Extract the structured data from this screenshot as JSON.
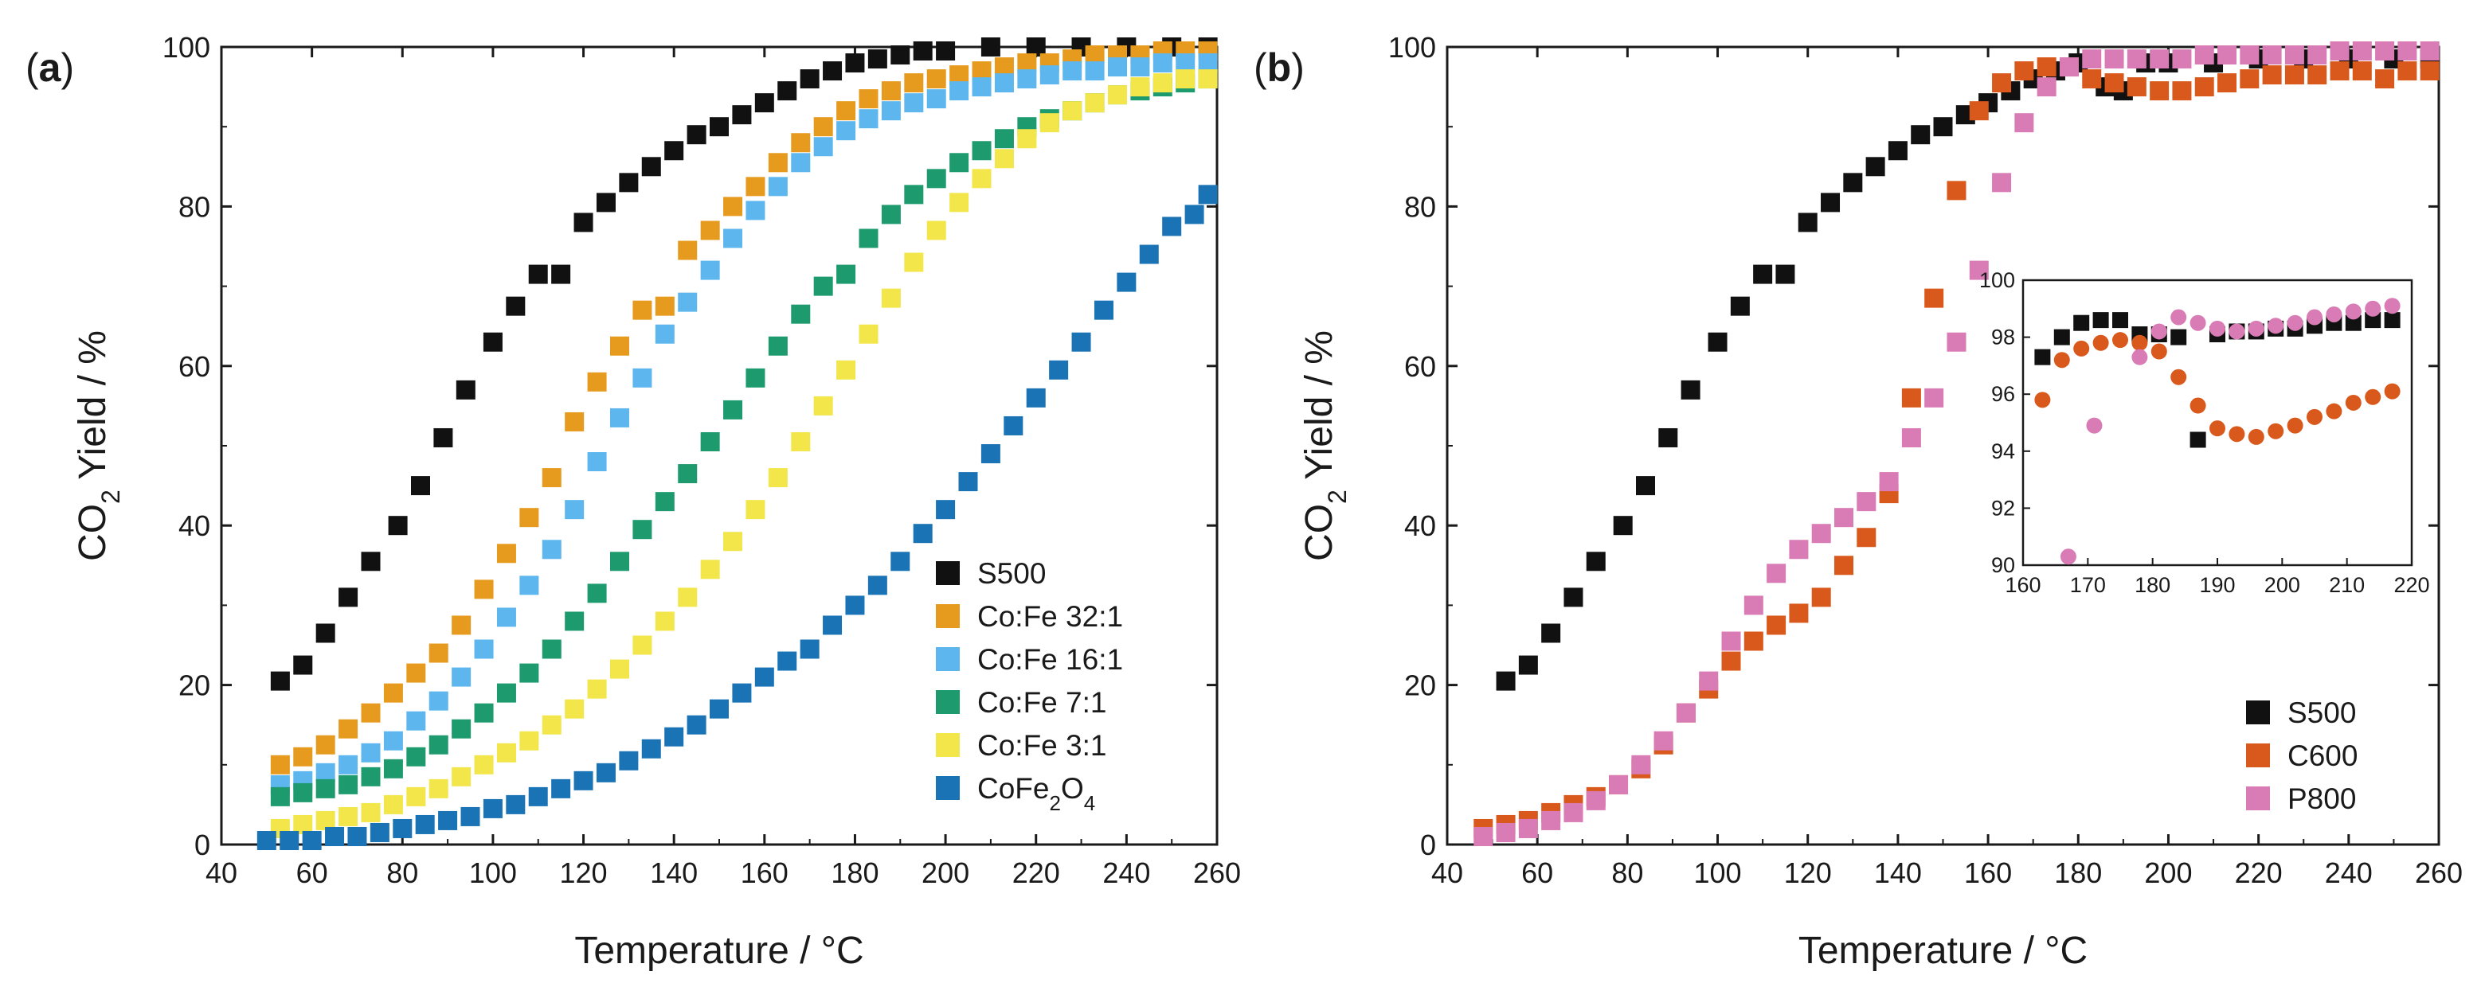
{
  "chart_data": [
    {
      "panel_label": "a",
      "type": "scatter",
      "title": "",
      "xlabel": "Temperature / °C",
      "ylabel_parts": [
        "CO",
        "2",
        " Yield / %"
      ],
      "xlim": [
        40,
        260
      ],
      "ylim": [
        0,
        100
      ],
      "xticks": [
        40,
        60,
        80,
        100,
        120,
        140,
        160,
        180,
        200,
        220,
        240,
        260
      ],
      "yticks": [
        0,
        20,
        40,
        60,
        80,
        100
      ],
      "legend_position": "bottom-right",
      "series": [
        {
          "name": "S500",
          "label_parts": [
            "S500"
          ],
          "color": "#111111",
          "marker": "square",
          "x": [
            53,
            58,
            63,
            68,
            73,
            79,
            84,
            89,
            94,
            100,
            105,
            110,
            115,
            120,
            125,
            130,
            135,
            140,
            145,
            150,
            155,
            160,
            165,
            170,
            175,
            180,
            185,
            190,
            195,
            200,
            210,
            220,
            230,
            240,
            250,
            258
          ],
          "y": [
            20.5,
            22.5,
            26.5,
            31,
            35.5,
            40,
            45,
            51,
            57,
            63,
            67.5,
            71.5,
            71.5,
            78,
            80.5,
            83,
            85,
            87,
            89,
            90,
            91.5,
            93,
            94.5,
            96,
            97,
            98,
            98.5,
            99,
            99.5,
            99.5,
            100,
            100,
            100,
            100,
            100,
            100
          ]
        },
        {
          "name": "Co:Fe 32:1",
          "label_parts": [
            "Co:Fe 32:1"
          ],
          "color": "#E69B1E",
          "marker": "square",
          "x": [
            53,
            58,
            63,
            68,
            73,
            78,
            83,
            88,
            93,
            98,
            103,
            108,
            113,
            118,
            123,
            128,
            133,
            138,
            143,
            148,
            153,
            158,
            163,
            168,
            173,
            178,
            183,
            188,
            193,
            198,
            203,
            208,
            213,
            218,
            223,
            228,
            233,
            238,
            243,
            248,
            253,
            258
          ],
          "y": [
            10,
            11,
            12.5,
            14.5,
            16.5,
            19,
            21.5,
            24,
            27.5,
            32,
            36.5,
            41,
            46,
            53,
            58,
            62.5,
            67,
            67.5,
            74.5,
            77,
            80,
            82.5,
            85.5,
            88,
            90,
            92,
            93.5,
            94.5,
            95.5,
            96,
            96.5,
            97,
            97.5,
            98,
            98,
            98.5,
            99,
            99,
            99,
            99.5,
            99.5,
            99.5
          ]
        },
        {
          "name": "Co:Fe 16:1",
          "label_parts": [
            "Co:Fe 16:1"
          ],
          "color": "#5DB7EE",
          "marker": "square",
          "x": [
            53,
            58,
            63,
            68,
            73,
            78,
            83,
            88,
            93,
            98,
            103,
            108,
            113,
            118,
            123,
            128,
            133,
            138,
            143,
            148,
            153,
            158,
            163,
            168,
            173,
            178,
            183,
            188,
            193,
            198,
            203,
            208,
            213,
            218,
            223,
            228,
            233,
            238,
            243,
            248,
            253,
            258
          ],
          "y": [
            7.5,
            8,
            9,
            10,
            11.5,
            13,
            15.5,
            18,
            21,
            24.5,
            28.5,
            32.5,
            37,
            42,
            48,
            53.5,
            58.5,
            64,
            68,
            72,
            76,
            79.5,
            82.5,
            85.5,
            87.5,
            89.5,
            91,
            92,
            93,
            93.5,
            94.5,
            95,
            95.5,
            96,
            96.5,
            97,
            97,
            97.5,
            97.5,
            98,
            98,
            98
          ]
        },
        {
          "name": "Co:Fe 7:1",
          "label_parts": [
            "Co:Fe 7:1"
          ],
          "color": "#1E9B6E",
          "marker": "square",
          "x": [
            53,
            58,
            63,
            68,
            73,
            78,
            83,
            88,
            93,
            98,
            103,
            108,
            113,
            118,
            123,
            128,
            133,
            138,
            143,
            148,
            153,
            158,
            163,
            168,
            173,
            178,
            183,
            188,
            193,
            198,
            203,
            208,
            213,
            218,
            223,
            228,
            233,
            238,
            243,
            248,
            253,
            258
          ],
          "y": [
            6,
            6.5,
            7,
            7.5,
            8.5,
            9.5,
            11,
            12.5,
            14.5,
            16.5,
            19,
            21.5,
            24.5,
            28,
            31.5,
            35.5,
            39.5,
            43,
            46.5,
            50.5,
            54.5,
            58.5,
            62.5,
            66.5,
            70,
            71.5,
            76,
            79,
            81.5,
            83.5,
            85.5,
            87,
            88.5,
            90,
            91,
            92,
            93,
            94,
            94.5,
            95,
            95.5,
            96
          ]
        },
        {
          "name": "Co:Fe 3:1",
          "label_parts": [
            "Co:Fe 3:1"
          ],
          "color": "#F2E64A",
          "marker": "square",
          "x": [
            53,
            58,
            63,
            68,
            73,
            78,
            83,
            88,
            93,
            98,
            103,
            108,
            113,
            118,
            123,
            128,
            133,
            138,
            143,
            148,
            153,
            158,
            163,
            168,
            173,
            178,
            183,
            188,
            193,
            198,
            203,
            208,
            213,
            218,
            223,
            228,
            233,
            238,
            243,
            248,
            253,
            258
          ],
          "y": [
            2,
            2.5,
            3,
            3.5,
            4,
            5,
            6,
            7,
            8.5,
            10,
            11.5,
            13,
            15,
            17,
            19.5,
            22,
            25,
            28,
            31,
            34.5,
            38,
            42,
            46,
            50.5,
            55,
            59.5,
            64,
            68.5,
            73,
            77,
            80.5,
            83.5,
            86,
            88.5,
            90.5,
            92,
            93,
            94,
            95,
            95.5,
            96,
            96
          ]
        },
        {
          "name": "CoFe2O4",
          "label_parts": [
            "CoFe",
            "2",
            "O",
            "4"
          ],
          "color": "#1A73B5",
          "marker": "square",
          "x": [
            50,
            55,
            60,
            65,
            70,
            75,
            80,
            85,
            90,
            95,
            100,
            105,
            110,
            115,
            120,
            125,
            130,
            135,
            140,
            145,
            150,
            155,
            160,
            165,
            170,
            175,
            180,
            185,
            190,
            195,
            200,
            205,
            210,
            215,
            220,
            225,
            230,
            235,
            240,
            245,
            250,
            255,
            258
          ],
          "y": [
            0.5,
            0.5,
            0.5,
            1,
            1,
            1.5,
            2,
            2.5,
            3,
            3.5,
            4.5,
            5,
            6,
            7,
            8,
            9,
            10.5,
            12,
            13.5,
            15,
            17,
            19,
            21,
            23,
            24.5,
            27.5,
            30,
            32.5,
            35.5,
            39,
            42,
            45.5,
            49,
            52.5,
            56,
            59.5,
            63,
            67,
            70.5,
            74,
            77.5,
            79,
            81.5
          ]
        }
      ]
    },
    {
      "panel_label": "b",
      "type": "scatter",
      "title": "",
      "xlabel": "Temperature / °C",
      "ylabel_parts": [
        "CO",
        "2",
        " Yield / %"
      ],
      "xlim": [
        40,
        260
      ],
      "ylim": [
        0,
        100
      ],
      "xticks": [
        40,
        60,
        80,
        100,
        120,
        140,
        160,
        180,
        200,
        220,
        240,
        260
      ],
      "yticks": [
        0,
        20,
        40,
        60,
        80,
        100
      ],
      "legend_position": "bottom-right",
      "series": [
        {
          "name": "S500",
          "label_parts": [
            "S500"
          ],
          "color": "#111111",
          "marker": "square",
          "x": [
            53,
            58,
            63,
            68,
            73,
            79,
            84,
            89,
            94,
            100,
            105,
            110,
            115,
            120,
            125,
            130,
            135,
            140,
            145,
            150,
            155,
            160,
            165,
            170,
            175,
            180,
            186,
            190,
            195,
            200,
            210,
            220,
            230,
            240,
            250,
            258
          ],
          "y": [
            20.5,
            22.5,
            26.5,
            31,
            35.5,
            40,
            45,
            51,
            57,
            63,
            67.5,
            71.5,
            71.5,
            78,
            80.5,
            83,
            85,
            87,
            89,
            90,
            91.5,
            93,
            94.5,
            96,
            97,
            98,
            95,
            94.5,
            98,
            98,
            98,
            98.5,
            98.5,
            98.5,
            98.5,
            98.5
          ]
        },
        {
          "name": "C600",
          "label_parts": [
            "C600"
          ],
          "color": "#D9581B",
          "marker": "square",
          "x": [
            48,
            53,
            58,
            63,
            68,
            73,
            78,
            83,
            88,
            93,
            98,
            103,
            108,
            113,
            118,
            123,
            128,
            133,
            138,
            143,
            148,
            153,
            158,
            163,
            168,
            173,
            178,
            183,
            188,
            193,
            198,
            203,
            208,
            213,
            218,
            223,
            228,
            233,
            238,
            243,
            248,
            253,
            258
          ],
          "y": [
            2,
            2.5,
            3,
            4,
            5,
            6,
            7.5,
            9.5,
            12.5,
            16.5,
            19.5,
            23,
            25.5,
            27.5,
            29,
            31,
            35,
            38.5,
            44,
            56,
            68.5,
            82,
            92,
            95.5,
            97,
            97.5,
            97.5,
            96,
            95.5,
            95,
            94.5,
            94.5,
            95,
            95.5,
            96,
            96.5,
            96.5,
            96.5,
            97,
            97,
            96,
            97,
            97
          ]
        },
        {
          "name": "P800",
          "label_parts": [
            "P800"
          ],
          "color": "#D97BB5",
          "marker": "square",
          "x": [
            48,
            53,
            58,
            63,
            68,
            73,
            78,
            83,
            88,
            93,
            98,
            103,
            108,
            113,
            118,
            123,
            128,
            133,
            138,
            143,
            148,
            153,
            158,
            163,
            168,
            173,
            178,
            183,
            188,
            193,
            198,
            203,
            208,
            213,
            218,
            223,
            228,
            233,
            238,
            243,
            248,
            253,
            258
          ],
          "y": [
            1,
            1.5,
            2,
            3,
            4,
            5.5,
            7.5,
            10,
            13,
            16.5,
            20.5,
            25.5,
            30,
            34,
            37,
            39,
            41,
            43,
            45.5,
            51,
            56,
            63,
            72,
            83,
            90.5,
            95,
            97.5,
            98.5,
            98.5,
            98.5,
            98.5,
            98.5,
            99,
            99,
            99,
            99,
            99,
            99,
            99.5,
            99.5,
            99.5,
            99.5,
            99.5
          ]
        }
      ],
      "inset": {
        "type": "scatter",
        "xlim": [
          160,
          220
        ],
        "ylim": [
          90,
          100
        ],
        "xticks": [
          160,
          170,
          180,
          190,
          200,
          210,
          220
        ],
        "yticks": [
          90,
          92,
          94,
          96,
          98,
          100
        ],
        "series": [
          {
            "name": "S500",
            "color": "#111111",
            "marker": "square",
            "x": [
              163,
              166,
              169,
              172,
              175,
              178,
              181,
              184,
              187,
              190,
              193,
              196,
              199,
              202,
              205,
              208,
              211,
              214,
              217
            ],
            "y": [
              97.3,
              98,
              98.5,
              98.6,
              98.6,
              98.1,
              98.1,
              98,
              94.4,
              98.1,
              98.2,
              98.2,
              98.3,
              98.3,
              98.4,
              98.5,
              98.5,
              98.6,
              98.6
            ]
          },
          {
            "name": "C600",
            "color": "#D9581B",
            "marker": "circle",
            "x": [
              163,
              166,
              169,
              172,
              175,
              178,
              181,
              184,
              187,
              190,
              193,
              196,
              199,
              202,
              205,
              208,
              211,
              214,
              217
            ],
            "y": [
              95.8,
              97.2,
              97.6,
              97.8,
              97.9,
              97.8,
              97.5,
              96.6,
              95.6,
              94.8,
              94.6,
              94.5,
              94.7,
              94.9,
              95.2,
              95.4,
              95.7,
              95.9,
              96.1
            ]
          },
          {
            "name": "P800",
            "color": "#D97BB5",
            "marker": "circle",
            "x": [
              167,
              171,
              178,
              181,
              184,
              187,
              190,
              193,
              196,
              199,
              202,
              205,
              208,
              211,
              214,
              217
            ],
            "y": [
              90.3,
              94.9,
              97.3,
              98.2,
              98.7,
              98.5,
              98.3,
              98.2,
              98.3,
              98.4,
              98.5,
              98.7,
              98.8,
              98.9,
              99,
              99.1
            ]
          }
        ]
      }
    }
  ]
}
